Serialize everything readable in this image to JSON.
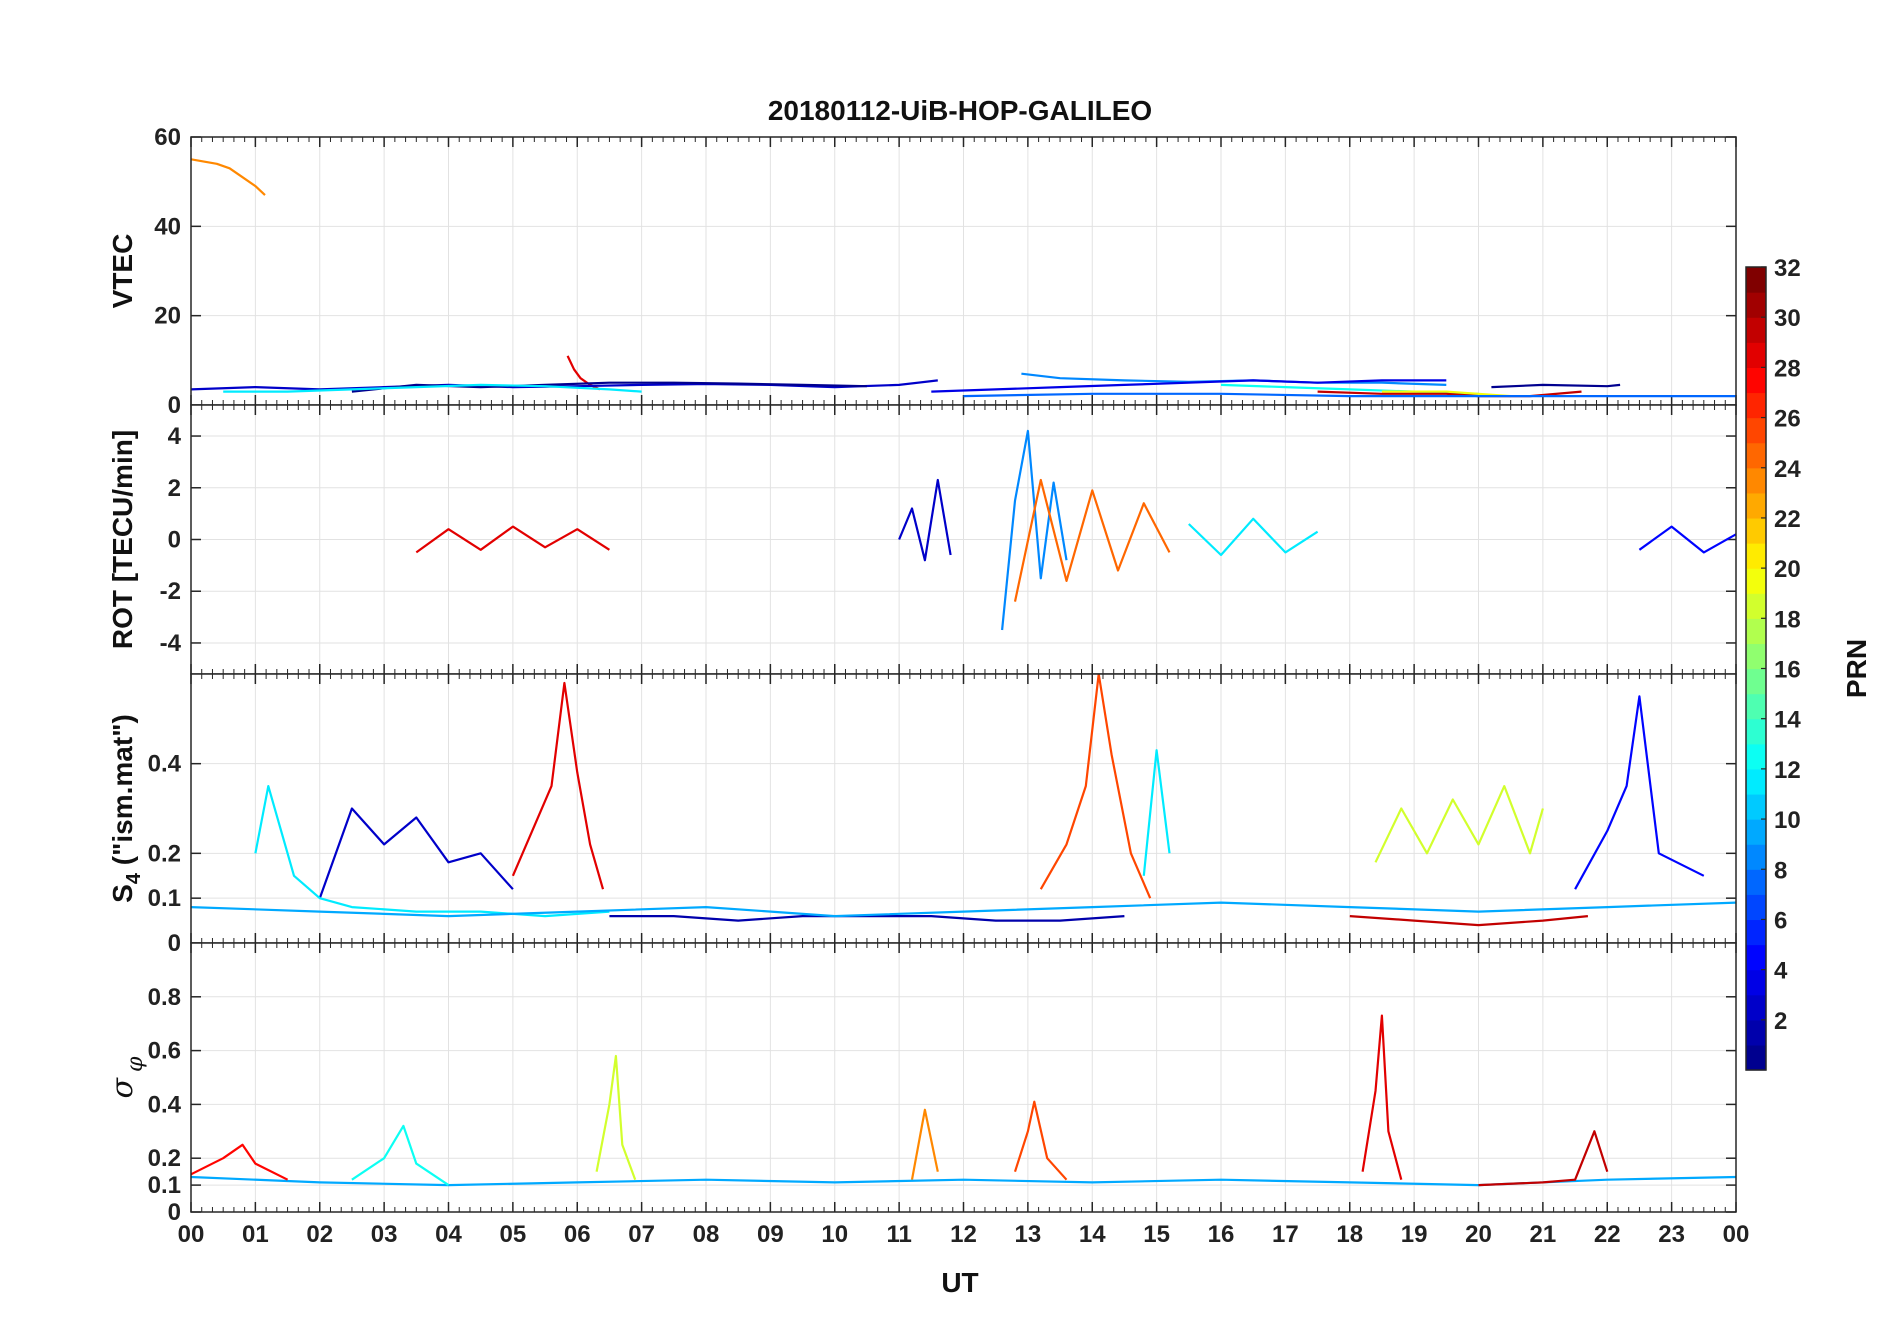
{
  "chart_data": {
    "type": "line",
    "title": "20180112-UiB-HOP-GALILEO",
    "xlabel": "UT",
    "x_ticks": [
      "00",
      "01",
      "02",
      "03",
      "04",
      "05",
      "06",
      "07",
      "08",
      "09",
      "10",
      "11",
      "12",
      "13",
      "14",
      "15",
      "16",
      "17",
      "18",
      "19",
      "20",
      "21",
      "22",
      "23",
      "00"
    ],
    "xlim": [
      0,
      24
    ],
    "colorbar": {
      "label": "PRN",
      "range": [
        1,
        32
      ],
      "ticks": [
        "2",
        "4",
        "6",
        "8",
        "10",
        "12",
        "14",
        "16",
        "18",
        "20",
        "22",
        "24",
        "26",
        "28",
        "30",
        "32"
      ],
      "colormap": "jet",
      "colors": [
        "#00008f",
        "#0000ff",
        "#0080ff",
        "#00ffff",
        "#80ff80",
        "#ffff00",
        "#ff8000",
        "#ff0000",
        "#800000"
      ]
    },
    "panels": [
      {
        "id": "vtec",
        "ylabel": "VTEC",
        "ylim": [
          0,
          60
        ],
        "y_ticks": [
          0,
          20,
          40,
          60
        ],
        "grid": true,
        "series": [
          {
            "prn": 24,
            "x": [
              0.0,
              0.2,
              0.4,
              0.6,
              0.8,
              1.0,
              1.15
            ],
            "y": [
              55,
              54.5,
              54,
              53,
              51,
              49,
              47
            ]
          },
          {
            "prn": 29,
            "x": [
              5.85,
              5.95,
              6.05,
              6.2,
              6.35
            ],
            "y": [
              11,
              8,
              6,
              4.5,
              3.5
            ]
          },
          {
            "prn": 3,
            "x": [
              0.0,
              1.0,
              2.0,
              3.0,
              4.0,
              5.0,
              6.0,
              7.0,
              8.0,
              9.0,
              10.0,
              11.0,
              11.6
            ],
            "y": [
              3.5,
              4,
              3.5,
              4,
              4.5,
              4,
              4.2,
              4.5,
              4.7,
              4.5,
              4,
              4.5,
              5.5
            ]
          },
          {
            "prn": 1,
            "x": [
              2.5,
              3.5,
              4.5,
              5.5,
              6.5,
              7.5,
              8.5,
              9.5,
              10.5
            ],
            "y": [
              3,
              4.5,
              4,
              4.5,
              5,
              5,
              4.8,
              4.5,
              4.2
            ]
          },
          {
            "prn": 12,
            "x": [
              0.5,
              1.5,
              2.5,
              3.5,
              4.5,
              5.5,
              6.5,
              7.0
            ],
            "y": [
              3,
              3,
              3.5,
              4,
              4.5,
              4.2,
              3.5,
              3
            ]
          },
          {
            "prn": 9,
            "x": [
              12.9,
              13.5,
              14.5,
              15.5,
              16.5,
              17.5,
              18.5,
              19.5
            ],
            "y": [
              7,
              6,
              5.5,
              5.2,
              5.5,
              5,
              5,
              4.5
            ]
          },
          {
            "prn": 4,
            "x": [
              11.5,
              12.5,
              13.5,
              14.5,
              15.5,
              16.5,
              17.5,
              18.5,
              19.5
            ],
            "y": [
              3,
              3.5,
              4,
              4.5,
              5,
              5.5,
              5,
              5.5,
              5.5
            ]
          },
          {
            "prn": 1,
            "x": [
              20.2,
              21.0,
              22.0,
              22.2
            ],
            "y": [
              4,
              4.5,
              4.2,
              4.5
            ]
          },
          {
            "prn": 13,
            "x": [
              16.0,
              17.0,
              18.0,
              19.0,
              20.0
            ],
            "y": [
              4.5,
              4,
              3.5,
              3,
              2.5
            ]
          },
          {
            "prn": 20,
            "x": [
              18.5,
              19.5,
              20.0,
              20.5
            ],
            "y": [
              3,
              3,
              2.5,
              2
            ]
          },
          {
            "prn": 30,
            "x": [
              17.5,
              18.5,
              19.5,
              20.0,
              20.8,
              21.6
            ],
            "y": [
              3,
              2.5,
              2.5,
              2,
              2,
              3
            ]
          },
          {
            "prn": 8,
            "x": [
              12.0,
              14.0,
              16.0,
              18.0,
              20.0,
              22.0,
              24.0
            ],
            "y": [
              2,
              2.5,
              2.5,
              2,
              2,
              2,
              2
            ]
          }
        ]
      },
      {
        "id": "rot",
        "ylabel": "ROT [TECU/min]",
        "ylim": [
          -5.2,
          5.2
        ],
        "y_ticks": [
          -4,
          -2,
          0,
          2,
          4
        ],
        "grid": true,
        "series": [
          {
            "prn": 3,
            "x": [
              11.0,
              11.2,
              11.4,
              11.6,
              11.8
            ],
            "y": [
              0,
              1.2,
              -0.8,
              2.3,
              -0.6
            ]
          },
          {
            "prn": 9,
            "x": [
              12.6,
              12.8,
              13.0,
              13.2,
              13.4,
              13.6
            ],
            "y": [
              -3.5,
              1.5,
              4.2,
              -1.5,
              2.2,
              -0.8
            ]
          },
          {
            "prn": 25,
            "x": [
              12.8,
              13.2,
              13.6,
              14.0,
              14.4,
              14.8,
              15.2
            ],
            "y": [
              -2.4,
              2.3,
              -1.6,
              1.9,
              -1.2,
              1.4,
              -0.5
            ]
          },
          {
            "prn": 29,
            "x": [
              3.5,
              4.0,
              4.5,
              5.0,
              5.5,
              6.0,
              6.5
            ],
            "y": [
              -0.5,
              0.4,
              -0.4,
              0.5,
              -0.3,
              0.4,
              -0.4
            ]
          },
          {
            "prn": 12,
            "x": [
              15.5,
              16.0,
              16.5,
              17.0,
              17.5
            ],
            "y": [
              0.6,
              -0.6,
              0.8,
              -0.5,
              0.3
            ]
          },
          {
            "prn": 5,
            "x": [
              22.5,
              23.0,
              23.5,
              24.0
            ],
            "y": [
              -0.4,
              0.5,
              -0.5,
              0.2
            ]
          }
        ]
      },
      {
        "id": "s4",
        "ylabel": "S4 (\"ism.mat\")",
        "ylabel_main": "S",
        "ylabel_sub": "4",
        "ylabel_rest": " (\"ism.mat\")",
        "ylim": [
          0,
          0.6
        ],
        "y_ticks": [
          0,
          0.1,
          0.2,
          0.4
        ],
        "grid": true,
        "series": [
          {
            "prn": 29,
            "x": [
              5.0,
              5.3,
              5.6,
              5.8,
              6.0,
              6.2,
              6.4
            ],
            "y": [
              0.15,
              0.25,
              0.35,
              0.58,
              0.38,
              0.22,
              0.12
            ]
          },
          {
            "prn": 26,
            "x": [
              13.2,
              13.6,
              13.9,
              14.1,
              14.3,
              14.6,
              14.9
            ],
            "y": [
              0.12,
              0.22,
              0.35,
              0.6,
              0.42,
              0.2,
              0.1
            ]
          },
          {
            "prn": 12,
            "x": [
              14.8,
              15.0,
              15.2
            ],
            "y": [
              0.15,
              0.43,
              0.2
            ]
          },
          {
            "prn": 3,
            "x": [
              2.0,
              2.5,
              3.0,
              3.5,
              4.0,
              4.5,
              5.0
            ],
            "y": [
              0.1,
              0.3,
              0.22,
              0.28,
              0.18,
              0.2,
              0.12
            ]
          },
          {
            "prn": 5,
            "x": [
              21.5,
              22.0,
              22.3,
              22.5,
              22.8,
              23.5
            ],
            "y": [
              0.12,
              0.25,
              0.35,
              0.55,
              0.2,
              0.15
            ]
          },
          {
            "prn": 19,
            "x": [
              18.4,
              18.8,
              19.2,
              19.6,
              20.0,
              20.4,
              20.8,
              21.0
            ],
            "y": [
              0.18,
              0.3,
              0.2,
              0.32,
              0.22,
              0.35,
              0.2,
              0.3
            ]
          },
          {
            "prn": 12,
            "x": [
              1.0,
              1.2,
              1.6,
              2.0,
              2.5,
              3.5,
              4.5,
              5.5,
              6.5
            ],
            "y": [
              0.2,
              0.35,
              0.15,
              0.1,
              0.08,
              0.07,
              0.07,
              0.06,
              0.07
            ]
          },
          {
            "prn": 2,
            "x": [
              6.5,
              7.5,
              8.5,
              9.5,
              10.5,
              11.5,
              12.5,
              13.5,
              14.5
            ],
            "y": [
              0.06,
              0.06,
              0.05,
              0.06,
              0.06,
              0.06,
              0.05,
              0.05,
              0.06
            ]
          },
          {
            "prn": 10,
            "x": [
              0.0,
              2.0,
              4.0,
              6.0,
              8.0,
              10.0,
              12.0,
              14.0,
              16.0,
              18.0,
              20.0,
              22.0,
              24.0
            ],
            "y": [
              0.08,
              0.07,
              0.06,
              0.07,
              0.08,
              0.06,
              0.07,
              0.08,
              0.09,
              0.08,
              0.07,
              0.08,
              0.09
            ]
          },
          {
            "prn": 30,
            "x": [
              18.0,
              19.0,
              20.0,
              21.0,
              21.7
            ],
            "y": [
              0.06,
              0.05,
              0.04,
              0.05,
              0.06
            ]
          }
        ]
      },
      {
        "id": "sigma_phi",
        "ylabel": "σ φ",
        "ylabel_main": "σ",
        "ylabel_sub": "φ",
        "ylim": [
          0,
          1.0
        ],
        "y_ticks": [
          0,
          0.1,
          0.2,
          0.4,
          0.6,
          0.8
        ],
        "grid": true,
        "series": [
          {
            "prn": 29,
            "x": [
              18.2,
              18.4,
              18.5,
              18.6,
              18.8
            ],
            "y": [
              0.15,
              0.45,
              0.73,
              0.3,
              0.12
            ]
          },
          {
            "prn": 19,
            "x": [
              6.3,
              6.5,
              6.6,
              6.7,
              6.9
            ],
            "y": [
              0.15,
              0.4,
              0.58,
              0.25,
              0.12
            ]
          },
          {
            "prn": 26,
            "x": [
              12.8,
              13.0,
              13.1,
              13.3,
              13.6
            ],
            "y": [
              0.15,
              0.3,
              0.41,
              0.2,
              0.12
            ]
          },
          {
            "prn": 24,
            "x": [
              11.2,
              11.4,
              11.6
            ],
            "y": [
              0.12,
              0.38,
              0.15
            ]
          },
          {
            "prn": 10,
            "x": [
              0.0,
              2.0,
              4.0,
              6.0,
              8.0,
              10.0,
              12.0,
              14.0,
              16.0,
              18.0,
              20.0,
              22.0,
              24.0
            ],
            "y": [
              0.13,
              0.11,
              0.1,
              0.11,
              0.12,
              0.11,
              0.12,
              0.11,
              0.12,
              0.11,
              0.1,
              0.12,
              0.13
            ]
          },
          {
            "prn": 30,
            "x": [
              20.0,
              21.0,
              21.5,
              21.8,
              22.0
            ],
            "y": [
              0.1,
              0.11,
              0.12,
              0.3,
              0.15
            ]
          },
          {
            "prn": 28,
            "x": [
              0.0,
              0.5,
              0.8,
              1.0,
              1.5
            ],
            "y": [
              0.14,
              0.2,
              0.25,
              0.18,
              0.12
            ]
          },
          {
            "prn": 13,
            "x": [
              2.5,
              3.0,
              3.3,
              3.5,
              4.0
            ],
            "y": [
              0.12,
              0.2,
              0.32,
              0.18,
              0.1
            ]
          }
        ]
      }
    ]
  }
}
